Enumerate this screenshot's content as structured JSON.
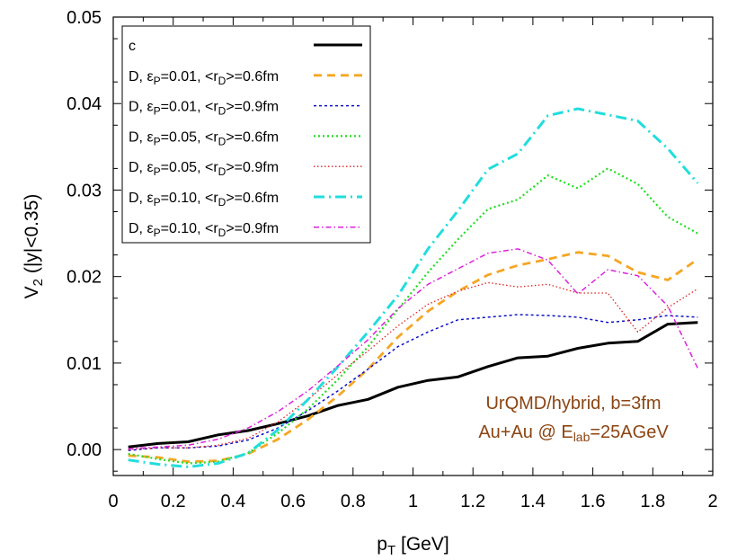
{
  "chart_data": {
    "type": "line",
    "xlabel": {
      "main": "p",
      "sub": "T",
      "rest": " [GeV]"
    },
    "ylabel": {
      "main": "V",
      "sub": "2",
      "rest": " (|y|<0.35)"
    },
    "xlim": [
      0,
      2
    ],
    "ylim": [
      -0.003,
      0.05
    ],
    "x_ticks": [
      0,
      0.2,
      0.4,
      0.6,
      0.8,
      1,
      1.2,
      1.4,
      1.6,
      1.8,
      2
    ],
    "x_tick_labels": [
      "0",
      "0.2",
      "0.4",
      "0.6",
      "0.8",
      "1",
      "1.2",
      "1.4",
      "1.6",
      "1.8",
      "2"
    ],
    "y_ticks": [
      0,
      0.01,
      0.02,
      0.03,
      0.04,
      0.05
    ],
    "y_tick_labels": [
      "0.00",
      "0.01",
      "0.02",
      "0.03",
      "0.04",
      "0.05"
    ],
    "grid": false,
    "legend_position": "top-left",
    "x": [
      0.05,
      0.15,
      0.25,
      0.35,
      0.45,
      0.55,
      0.65,
      0.75,
      0.85,
      0.95,
      1.05,
      1.15,
      1.25,
      1.35,
      1.45,
      1.55,
      1.65,
      1.75,
      1.85,
      1.95
    ],
    "series": [
      {
        "legend": [
          {
            "t": "c"
          }
        ],
        "color": "#000000",
        "dash": "",
        "width": 3,
        "values": [
          0.0003,
          0.0007,
          0.0009,
          0.0017,
          0.0022,
          0.003,
          0.0039,
          0.0051,
          0.0058,
          0.0072,
          0.008,
          0.0084,
          0.0096,
          0.0106,
          0.0108,
          0.0117,
          0.0123,
          0.0125,
          0.0145,
          0.0147
        ]
      },
      {
        "legend": [
          {
            "t": "D, ε"
          },
          {
            "t": "P",
            "sub": true
          },
          {
            "t": "=0.01, <r"
          },
          {
            "t": "D",
            "sub": true
          },
          {
            "t": ">=0.6fm"
          }
        ],
        "color": "#f5a623",
        "dash": "9,6",
        "width": 2.8,
        "values": [
          -0.0007,
          -0.0009,
          -0.0014,
          -0.0013,
          -0.0005,
          0.0012,
          0.0035,
          0.0062,
          0.0093,
          0.013,
          0.016,
          0.0183,
          0.0202,
          0.0213,
          0.022,
          0.0228,
          0.0224,
          0.0205,
          0.0196,
          0.022
        ]
      },
      {
        "legend": [
          {
            "t": "D, ε"
          },
          {
            "t": "P",
            "sub": true
          },
          {
            "t": "=0.01, <r"
          },
          {
            "t": "D",
            "sub": true
          },
          {
            "t": ">=0.9fm"
          }
        ],
        "color": "#1010c8",
        "dash": "3,3",
        "width": 1.5,
        "values": [
          -0.0001,
          0.0002,
          0.0002,
          0.0004,
          0.0011,
          0.0025,
          0.0045,
          0.0068,
          0.0093,
          0.0119,
          0.0136,
          0.015,
          0.0153,
          0.0156,
          0.0155,
          0.0153,
          0.0147,
          0.015,
          0.0155,
          0.0153
        ]
      },
      {
        "legend": [
          {
            "t": "D, ε"
          },
          {
            "t": "P",
            "sub": true
          },
          {
            "t": "=0.05, <r"
          },
          {
            "t": "D",
            "sub": true
          },
          {
            "t": ">=0.6fm"
          }
        ],
        "color": "#22dd22",
        "dash": "2,3",
        "width": 2.2,
        "values": [
          -0.0005,
          -0.0011,
          -0.0016,
          -0.0014,
          -0.0004,
          0.0019,
          0.0047,
          0.0081,
          0.0119,
          0.0162,
          0.0205,
          0.0243,
          0.0278,
          0.0289,
          0.0317,
          0.0302,
          0.0325,
          0.0307,
          0.0269,
          0.025
        ]
      },
      {
        "legend": [
          {
            "t": "D, ε"
          },
          {
            "t": "P",
            "sub": true
          },
          {
            "t": "=0.05, <r"
          },
          {
            "t": "D",
            "sub": true
          },
          {
            "t": ">=0.9fm"
          }
        ],
        "color": "#dd2222",
        "dash": "1.5,2.5",
        "width": 1.3,
        "values": [
          0,
          0.0002,
          0.0002,
          0.0005,
          0.0013,
          0.0032,
          0.0058,
          0.0087,
          0.0114,
          0.0143,
          0.0168,
          0.0183,
          0.0193,
          0.0188,
          0.0191,
          0.0181,
          0.0181,
          0.0136,
          0.0164,
          0.0186
        ]
      },
      {
        "legend": [
          {
            "t": "D, ε"
          },
          {
            "t": "P",
            "sub": true
          },
          {
            "t": "=0.10, <r"
          },
          {
            "t": "D",
            "sub": true
          },
          {
            "t": ">=0.6fm"
          }
        ],
        "color": "#22dddd",
        "dash": "12,5,2,5",
        "width": 3,
        "values": [
          -0.0012,
          -0.0017,
          -0.002,
          -0.0016,
          -0.0004,
          0.0023,
          0.0058,
          0.0096,
          0.0136,
          0.0178,
          0.0232,
          0.0276,
          0.0324,
          0.0342,
          0.0386,
          0.0394,
          0.0387,
          0.038,
          0.0348,
          0.0308
        ]
      },
      {
        "legend": [
          {
            "t": "D, ε"
          },
          {
            "t": "P",
            "sub": true
          },
          {
            "t": "=0.10, <r"
          },
          {
            "t": "D",
            "sub": true
          },
          {
            "t": ">=0.9fm"
          }
        ],
        "color": "#dd22dd",
        "dash": "6,3,1.5,3",
        "width": 1.5,
        "values": [
          0.0001,
          0.0003,
          0.0005,
          0.0012,
          0.0025,
          0.0044,
          0.0068,
          0.0097,
          0.0127,
          0.0163,
          0.0191,
          0.0209,
          0.0227,
          0.0232,
          0.0219,
          0.018,
          0.0208,
          0.0201,
          0.0166,
          0.0094
        ]
      }
    ],
    "annotation": {
      "color": "#8b4513",
      "line1": "UrQMD/hybrid, b=3fm",
      "line2": [
        {
          "t": "Au+Au @ E"
        },
        {
          "t": "lab",
          "sub": true
        },
        {
          "t": "=25AGeV"
        }
      ]
    }
  }
}
